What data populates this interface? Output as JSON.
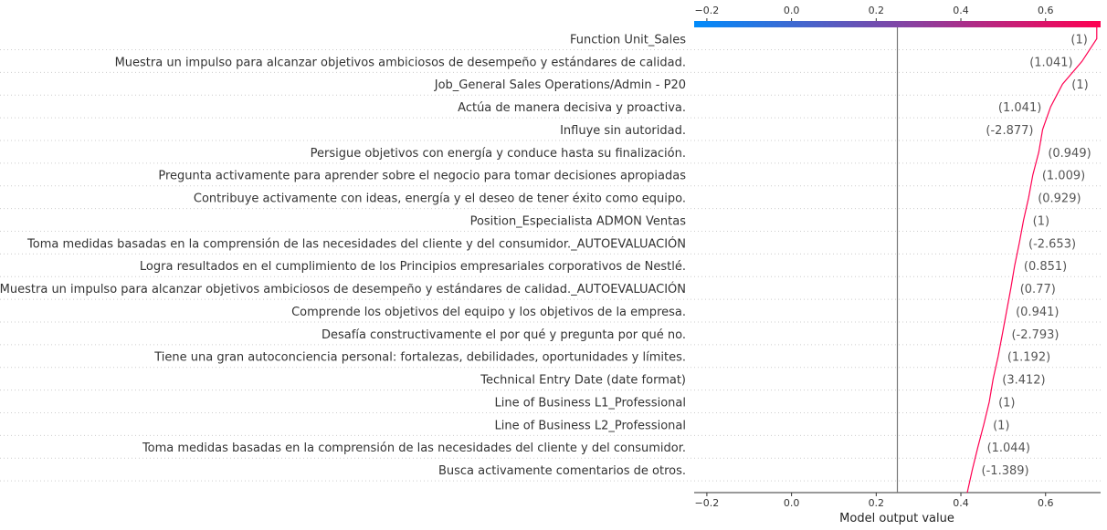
{
  "chart_data": {
    "type": "line",
    "title": "",
    "xlabel": "Model output value",
    "ylabel": "",
    "xlim": [
      -0.23,
      0.73
    ],
    "xticks": [
      -0.2,
      0.0,
      0.2,
      0.4,
      0.6
    ],
    "xtick_labels": [
      "−0.2",
      "0.0",
      "0.2",
      "0.4",
      "0.6"
    ],
    "base_value": 0.25,
    "grid": "dotted horizontal rows",
    "colorbar": {
      "colors": [
        "#008bfb",
        "#ff0051"
      ],
      "position": "top"
    },
    "line_color": "#ff0051",
    "features": [
      {
        "label": "Function Unit_Sales",
        "value_label": "(1)",
        "output": 0.721
      },
      {
        "label": "Muestra un impulso para alcanzar objetivos ambiciosos de desempeño y estándares de calidad.",
        "value_label": "(1.041)",
        "output": 0.686
      },
      {
        "label": "Job_General Sales Operations/Admin - P20",
        "value_label": "(1)",
        "output": 0.64
      },
      {
        "label": "Actúa de manera decisiva y proactiva.",
        "value_label": "(1.041)",
        "output": 0.612
      },
      {
        "label": "Influye sin autoridad.",
        "value_label": "(-2.877)",
        "output": 0.593
      },
      {
        "label": "Persigue objetivos con energía y conduce hasta su finalización.",
        "value_label": "(0.949)",
        "output": 0.584
      },
      {
        "label": "Pregunta activamente para aprender sobre el negocio para tomar decisiones apropiadas",
        "value_label": "(1.009)",
        "output": 0.57
      },
      {
        "label": "Contribuye activamente con ideas, energía y el deseo de tener éxito como equipo.",
        "value_label": "(0.929)",
        "output": 0.56
      },
      {
        "label": "Position_Especialista ADMON Ventas",
        "value_label": "(1)",
        "output": 0.548
      },
      {
        "label": "Toma medidas basadas en la comprensión de las necesidades del cliente y del consumidor._AUTOEVALUACIÓN",
        "value_label": "(-2.653)",
        "output": 0.538
      },
      {
        "label": "Logra resultados en el cumplimiento de los Principios empresariales corporativos de Nestlé.",
        "value_label": "(0.851)",
        "output": 0.527
      },
      {
        "label": "Muestra un impulso para alcanzar objetivos ambiciosos de desempeño y estándares de calidad._AUTOEVALUACIÓN",
        "value_label": "(0.77)",
        "output": 0.518
      },
      {
        "label": "Comprende los objetivos del equipo y los objetivos de la empresa.",
        "value_label": "(0.941)",
        "output": 0.508
      },
      {
        "label": "Desafía constructivamente el por qué y pregunta por qué no.",
        "value_label": "(-2.793)",
        "output": 0.498
      },
      {
        "label": "Tiene una gran autoconciencia personal: fortalezas, debilidades, oportunidades y límites.",
        "value_label": "(1.192)",
        "output": 0.488
      },
      {
        "label": "Technical Entry Date (date format)",
        "value_label": "(3.412)",
        "output": 0.476
      },
      {
        "label": "Line of Business L1_Professional",
        "value_label": "(1)",
        "output": 0.467
      },
      {
        "label": "Line of Business L2_Professional",
        "value_label": "(1)",
        "output": 0.454
      },
      {
        "label": "Toma medidas basadas en la comprensión de las necesidades del cliente y del consumidor.",
        "value_label": "(1.044)",
        "output": 0.44
      },
      {
        "label": "Busca activamente comentarios de otros.",
        "value_label": "(-1.389)",
        "output": 0.427
      }
    ],
    "final_output": 0.415
  }
}
